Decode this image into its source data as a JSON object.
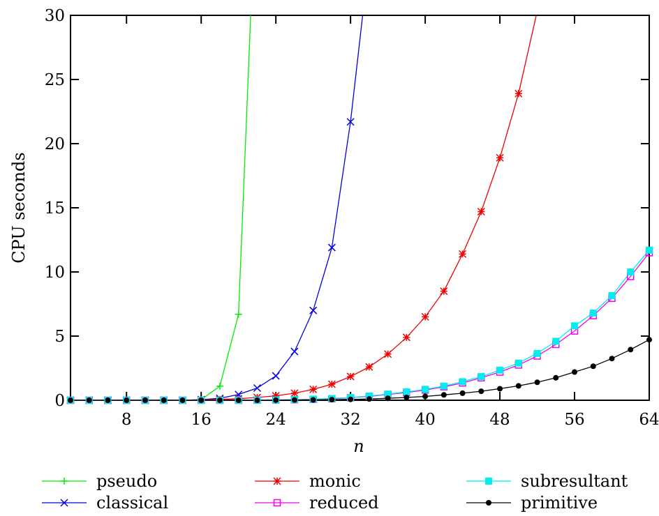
{
  "chart_data": {
    "type": "line",
    "title": "",
    "xlabel": "n",
    "ylabel": "CPU seconds",
    "xlim": [
      2,
      64
    ],
    "ylim": [
      0,
      30
    ],
    "xticks": [
      8,
      16,
      24,
      32,
      40,
      48,
      56,
      64
    ],
    "yticks": [
      0,
      5,
      10,
      15,
      20,
      25,
      30
    ],
    "grid": false,
    "legend_position": "bottom",
    "series": [
      {
        "name": "pseudo",
        "color": "#00ee00",
        "marker": "plus",
        "x": [
          2,
          4,
          6,
          8,
          10,
          12,
          14,
          16,
          18,
          20,
          21.3
        ],
        "y": [
          0,
          0,
          0,
          0,
          0,
          0,
          0,
          0.05,
          1.1,
          6.7,
          30
        ]
      },
      {
        "name": "classical",
        "color": "#0000dd",
        "marker": "cross",
        "x": [
          2,
          4,
          6,
          8,
          10,
          12,
          14,
          16,
          18,
          20,
          22,
          24,
          26,
          28,
          30,
          32,
          33.3
        ],
        "y": [
          0,
          0,
          0,
          0,
          0,
          0,
          0,
          0.05,
          0.15,
          0.45,
          0.95,
          1.9,
          3.8,
          7.0,
          11.9,
          21.7,
          30
        ]
      },
      {
        "name": "monic",
        "color": "#ee0000",
        "marker": "star",
        "x": [
          2,
          4,
          6,
          8,
          10,
          12,
          14,
          16,
          18,
          20,
          22,
          24,
          26,
          28,
          30,
          32,
          34,
          36,
          38,
          40,
          42,
          44,
          46,
          48,
          50,
          51.9
        ],
        "y": [
          0,
          0,
          0,
          0,
          0,
          0,
          0,
          0.03,
          0.07,
          0.12,
          0.22,
          0.35,
          0.55,
          0.85,
          1.25,
          1.85,
          2.6,
          3.6,
          4.9,
          6.5,
          8.5,
          11.4,
          14.7,
          18.9,
          23.9,
          30
        ]
      },
      {
        "name": "reduced",
        "color": "#ee00ee",
        "marker": "square-open",
        "x": [
          2,
          4,
          6,
          8,
          10,
          12,
          14,
          16,
          18,
          20,
          22,
          24,
          26,
          28,
          30,
          32,
          34,
          36,
          38,
          40,
          42,
          44,
          46,
          48,
          50,
          52,
          54,
          56,
          58,
          60,
          62,
          64
        ],
        "y": [
          0,
          0,
          0,
          0,
          0,
          0,
          0,
          0,
          0,
          0,
          0.01,
          0.02,
          0.04,
          0.07,
          0.12,
          0.2,
          0.3,
          0.45,
          0.6,
          0.8,
          1.05,
          1.35,
          1.75,
          2.2,
          2.75,
          3.45,
          4.35,
          5.4,
          6.6,
          7.95,
          9.65,
          11.5
        ]
      },
      {
        "name": "subresultant",
        "color": "#00eeee",
        "marker": "square-filled",
        "x": [
          2,
          4,
          6,
          8,
          10,
          12,
          14,
          16,
          18,
          20,
          22,
          24,
          26,
          28,
          30,
          32,
          34,
          36,
          38,
          40,
          42,
          44,
          46,
          48,
          50,
          52,
          54,
          56,
          58,
          60,
          62,
          64
        ],
        "y": [
          0,
          0,
          0,
          0,
          0,
          0,
          0,
          0,
          0,
          0,
          0.01,
          0.02,
          0.05,
          0.08,
          0.14,
          0.22,
          0.33,
          0.48,
          0.65,
          0.85,
          1.1,
          1.45,
          1.85,
          2.35,
          2.9,
          3.65,
          4.6,
          5.8,
          6.8,
          8.15,
          10.0,
          11.7
        ]
      },
      {
        "name": "primitive",
        "color": "#000000",
        "marker": "dot",
        "x": [
          2,
          4,
          6,
          8,
          10,
          12,
          14,
          16,
          18,
          20,
          22,
          24,
          26,
          28,
          30,
          32,
          34,
          36,
          38,
          40,
          42,
          44,
          46,
          48,
          50,
          52,
          54,
          56,
          58,
          60,
          62,
          64
        ],
        "y": [
          0,
          0,
          0,
          0,
          0,
          0,
          0,
          0,
          0,
          0,
          0,
          0.01,
          0.02,
          0.03,
          0.05,
          0.07,
          0.1,
          0.15,
          0.22,
          0.3,
          0.42,
          0.55,
          0.7,
          0.9,
          1.12,
          1.4,
          1.75,
          2.2,
          2.65,
          3.25,
          3.95,
          4.72
        ]
      }
    ]
  }
}
